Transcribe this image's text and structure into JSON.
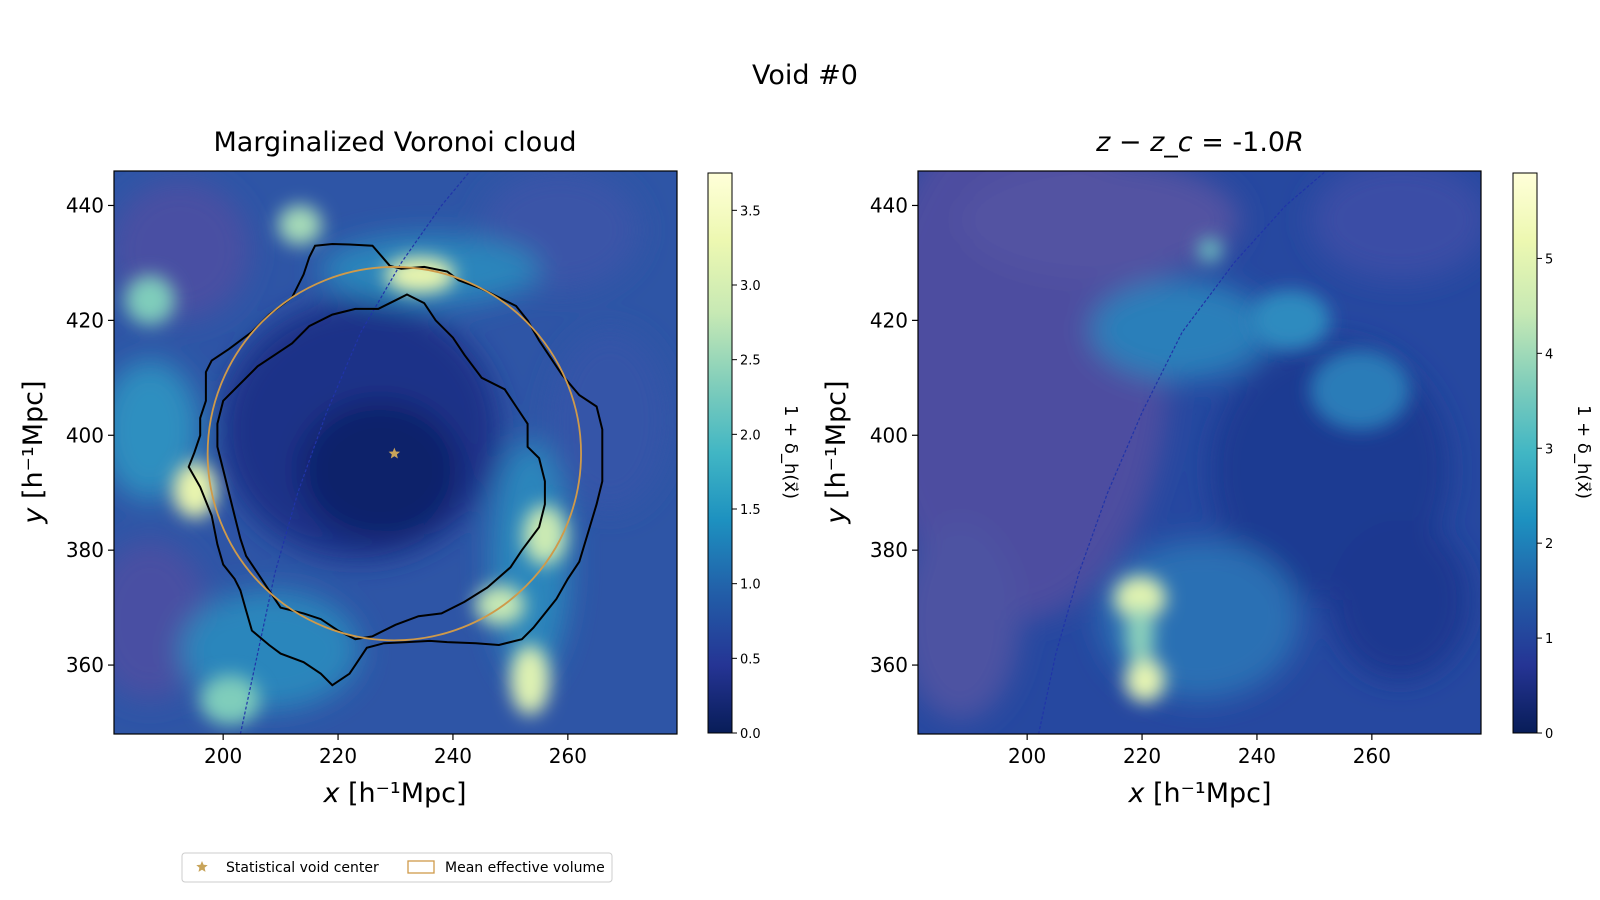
{
  "figure": {
    "suptitle": "Void #0"
  },
  "chart_data": [
    {
      "type": "heatmap",
      "title": "Marginalized Voronoi cloud",
      "xlabel_symbol": "x",
      "ylabel_symbol": "y",
      "axis_unit": "[h⁻¹Mpc]",
      "xlim": [
        181,
        279
      ],
      "ylim": [
        348,
        446
      ],
      "xticks": [
        "200",
        "220",
        "240",
        "260"
      ],
      "yticks": [
        "360",
        "380",
        "400",
        "420",
        "440"
      ],
      "xtick_values": [
        200,
        220,
        240,
        260
      ],
      "ytick_values": [
        360,
        380,
        400,
        420,
        440
      ],
      "colorbar": {
        "label": "1 + δ_h(x⃗)",
        "range": [
          0,
          3.75
        ],
        "ticks": [
          "0.0",
          "0.5",
          "1.0",
          "1.5",
          "2.0",
          "2.5",
          "3.0",
          "3.5"
        ],
        "tick_values": [
          0,
          0.5,
          1.0,
          1.5,
          2.0,
          2.5,
          3.0,
          3.5
        ],
        "colormap": "YlGnBu_r"
      },
      "void_center": [
        229.8,
        396.8
      ],
      "mean_effective_radius": 32.5,
      "outer_contour": [
        [
          216,
          433
        ],
        [
          219,
          433.3
        ],
        [
          222,
          433.2
        ],
        [
          226,
          433
        ],
        [
          229,
          429.5
        ],
        [
          231,
          429
        ],
        [
          235,
          429.3
        ],
        [
          239,
          428.5
        ],
        [
          241,
          427
        ],
        [
          245,
          425.5
        ],
        [
          248,
          424
        ],
        [
          251,
          422.5
        ],
        [
          253,
          420
        ],
        [
          255,
          416.5
        ],
        [
          257,
          413.5
        ],
        [
          259,
          410.5
        ],
        [
          262,
          407
        ],
        [
          265,
          405
        ],
        [
          266,
          401
        ],
        [
          266,
          397
        ],
        [
          266,
          392
        ],
        [
          265,
          388
        ],
        [
          263.5,
          383
        ],
        [
          262,
          378
        ],
        [
          260,
          375
        ],
        [
          258,
          371.5
        ],
        [
          256,
          369
        ],
        [
          254,
          366.5
        ],
        [
          252,
          364.5
        ],
        [
          248,
          363.5
        ],
        [
          244,
          363.8
        ],
        [
          239,
          364
        ],
        [
          236,
          364.2
        ],
        [
          232,
          364
        ],
        [
          228,
          363.8
        ],
        [
          225,
          363
        ],
        [
          223,
          360
        ],
        [
          222,
          358.5
        ],
        [
          219,
          356.5
        ],
        [
          217,
          358.5
        ],
        [
          214,
          360.5
        ],
        [
          210,
          362
        ],
        [
          208,
          363.5
        ],
        [
          205,
          366
        ],
        [
          204,
          369.5
        ],
        [
          203,
          373
        ],
        [
          202,
          375
        ],
        [
          200,
          377.5
        ],
        [
          199,
          381
        ],
        [
          198,
          386
        ],
        [
          196,
          391
        ],
        [
          194,
          394.5
        ],
        [
          195,
          397
        ],
        [
          196,
          400
        ],
        [
          196,
          403
        ],
        [
          197,
          406
        ],
        [
          197,
          411
        ],
        [
          198,
          413
        ],
        [
          201,
          415
        ],
        [
          205,
          418
        ],
        [
          208,
          421
        ],
        [
          212,
          424
        ],
        [
          214,
          428
        ],
        [
          215,
          431
        ]
      ],
      "inner_contour": [
        [
          232,
          424.5
        ],
        [
          235,
          423
        ],
        [
          237,
          420
        ],
        [
          240,
          417
        ],
        [
          242,
          414
        ],
        [
          245,
          410
        ],
        [
          249,
          408
        ],
        [
          251,
          405
        ],
        [
          253,
          402
        ],
        [
          253,
          398
        ],
        [
          255,
          396
        ],
        [
          256,
          392
        ],
        [
          256,
          388
        ],
        [
          255,
          384
        ],
        [
          252,
          380
        ],
        [
          250,
          377
        ],
        [
          246,
          373.5
        ],
        [
          242,
          371
        ],
        [
          238,
          369
        ],
        [
          234,
          368.5
        ],
        [
          230,
          367
        ],
        [
          226,
          365
        ],
        [
          223,
          364.5
        ],
        [
          220,
          366
        ],
        [
          217,
          368
        ],
        [
          214,
          369
        ],
        [
          210,
          370
        ],
        [
          208,
          373
        ],
        [
          206,
          376
        ],
        [
          204,
          379
        ],
        [
          203,
          382
        ],
        [
          202,
          386
        ],
        [
          201,
          390
        ],
        [
          200,
          394
        ],
        [
          199,
          398
        ],
        [
          199,
          402
        ],
        [
          200,
          406
        ],
        [
          203,
          409
        ],
        [
          206,
          412
        ],
        [
          209,
          414
        ],
        [
          212,
          416
        ],
        [
          215,
          419
        ],
        [
          219,
          421
        ],
        [
          223,
          422
        ],
        [
          227,
          422
        ],
        [
          230,
          423.5
        ]
      ],
      "survey_boundary": [
        [
          203,
          348
        ],
        [
          206,
          362
        ],
        [
          209,
          376
        ],
        [
          213,
          390
        ],
        [
          218,
          404
        ],
        [
          224,
          418
        ],
        [
          231,
          430
        ],
        [
          238,
          440
        ],
        [
          243,
          446
        ]
      ]
    },
    {
      "type": "heatmap",
      "title_math": "z − z_c",
      "title_value": " = -1.0",
      "title_unit": "R",
      "xlabel_symbol": "x",
      "ylabel_symbol": "y",
      "axis_unit": "[h⁻¹Mpc]",
      "xlim": [
        181,
        279
      ],
      "ylim": [
        348,
        446
      ],
      "xticks": [
        "200",
        "220",
        "240",
        "260"
      ],
      "yticks": [
        "360",
        "380",
        "400",
        "420",
        "440"
      ],
      "xtick_values": [
        200,
        220,
        240,
        260
      ],
      "ytick_values": [
        360,
        380,
        400,
        420,
        440
      ],
      "colorbar": {
        "label": "1 + δ_h(x⃗)",
        "range": [
          0,
          5.9
        ],
        "ticks": [
          "0",
          "1",
          "2",
          "3",
          "4",
          "5"
        ],
        "tick_values": [
          0,
          1,
          2,
          3,
          4,
          5
        ],
        "colormap": "YlGnBu_r"
      },
      "survey_boundary": [
        [
          202,
          348
        ],
        [
          205,
          362
        ],
        [
          209,
          376
        ],
        [
          214,
          390
        ],
        [
          220,
          404
        ],
        [
          227,
          418
        ],
        [
          236,
          430
        ],
        [
          245,
          440
        ],
        [
          252,
          446
        ]
      ]
    }
  ],
  "legend": {
    "placement": "bottom-left",
    "items": [
      {
        "marker": "star",
        "label": "Statistical void center",
        "color": "#c8a45a"
      },
      {
        "marker": "rect",
        "label": "Mean effective volume",
        "color": "#cf9a4a"
      }
    ]
  },
  "colors": {
    "contour": "#000000",
    "mean_volume_circle": "#cf9a4a",
    "void_center_star": "#c8a45a",
    "survey_boundary": "#2034a8"
  }
}
